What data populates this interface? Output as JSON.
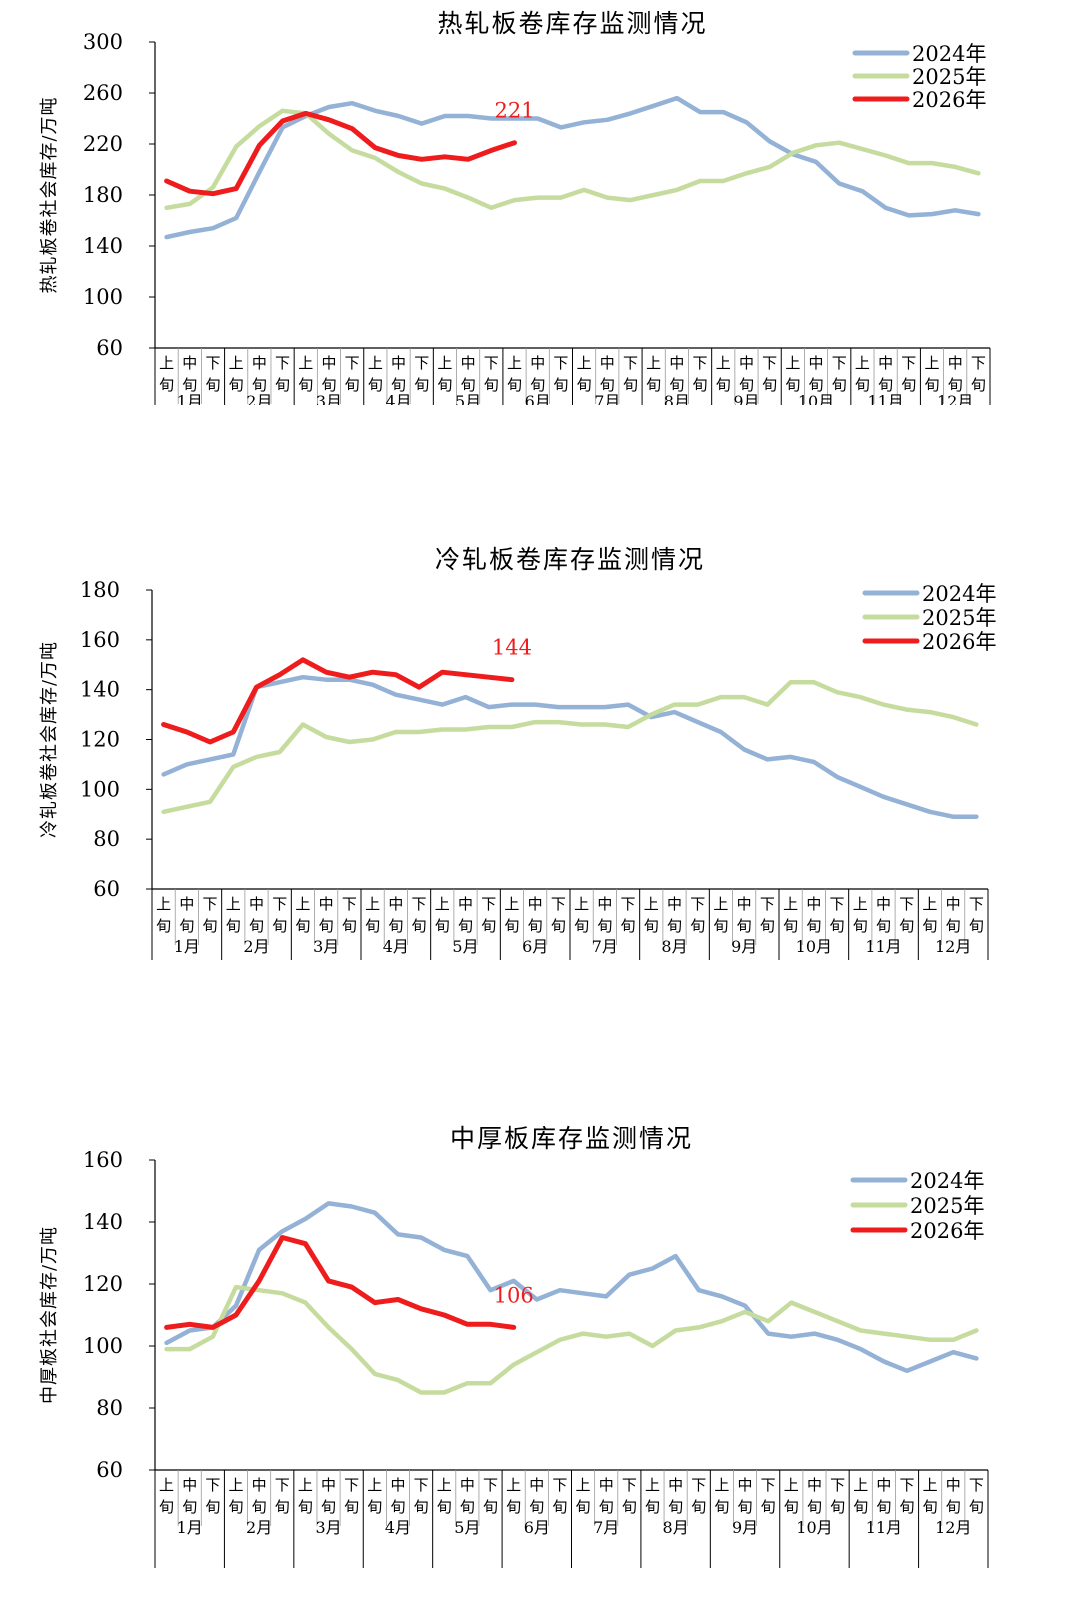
{
  "x_axis": {
    "dekads": [
      "上旬",
      "中旬",
      "下旬"
    ],
    "months": [
      "1月",
      "2月",
      "3月",
      "4月",
      "5月",
      "6月",
      "7月",
      "8月",
      "9月",
      "10月",
      "11月",
      "12月"
    ]
  },
  "colors": {
    "2024": "#94b1d6",
    "2025": "#c5dc9e",
    "2026": "#ee1c1c"
  },
  "chart_data": [
    {
      "type": "line",
      "title": "热轧板卷库存监测情况",
      "ylabel": "热轧板卷社会库存/万吨",
      "ylim": [
        60,
        300
      ],
      "yticks": [
        60,
        100,
        140,
        180,
        220,
        260,
        300
      ],
      "legend": "top-right",
      "annotation": {
        "text": "221",
        "series": "2026年",
        "index": 15
      },
      "series": [
        {
          "name": "2024年",
          "values": [
            147,
            151,
            154,
            162,
            198,
            233,
            242,
            249,
            252,
            246,
            242,
            236,
            242,
            242,
            240,
            240,
            240,
            233,
            237,
            239,
            244,
            250,
            256,
            245,
            245,
            237,
            222,
            212,
            206,
            189,
            183,
            170,
            164,
            165,
            168,
            165
          ]
        },
        {
          "name": "2025年",
          "values": [
            170,
            173,
            186,
            218,
            234,
            246,
            244,
            228,
            215,
            209,
            198,
            189,
            185,
            178,
            170,
            176,
            178,
            178,
            184,
            178,
            176,
            180,
            184,
            191,
            191,
            197,
            202,
            213,
            219,
            221,
            216,
            211,
            205,
            205,
            202,
            197
          ]
        },
        {
          "name": "2026年",
          "values": [
            191,
            183,
            181,
            185,
            219,
            238,
            244,
            239,
            232,
            217,
            211,
            208,
            210,
            208,
            215,
            221
          ]
        }
      ]
    },
    {
      "type": "line",
      "title": "冷轧板卷库存监测情况",
      "ylabel": "冷轧板卷社会库存/万吨",
      "ylim": [
        60,
        180
      ],
      "yticks": [
        60,
        80,
        100,
        120,
        140,
        160,
        180
      ],
      "legend": "top-right",
      "annotation": {
        "text": "144",
        "series": "2026年",
        "index": 15
      },
      "series": [
        {
          "name": "2024年",
          "values": [
            106,
            110,
            112,
            114,
            141,
            143,
            145,
            144,
            144,
            142,
            138,
            136,
            134,
            137,
            133,
            134,
            134,
            133,
            133,
            133,
            134,
            129,
            131,
            127,
            123,
            116,
            112,
            113,
            111,
            105,
            101,
            97,
            94,
            91,
            89,
            89
          ]
        },
        {
          "name": "2025年",
          "values": [
            91,
            93,
            95,
            109,
            113,
            115,
            126,
            121,
            119,
            120,
            123,
            123,
            124,
            124,
            125,
            125,
            127,
            127,
            126,
            126,
            125,
            130,
            134,
            134,
            137,
            137,
            134,
            143,
            143,
            139,
            137,
            134,
            132,
            131,
            129,
            126
          ]
        },
        {
          "name": "2026年",
          "values": [
            126,
            123,
            119,
            123,
            141,
            146,
            152,
            147,
            145,
            147,
            146,
            141,
            147,
            146,
            145,
            144
          ]
        }
      ]
    },
    {
      "type": "line",
      "title": "中厚板库存监测情况",
      "ylabel": "中厚板社会库存/万吨",
      "ylim": [
        60,
        160
      ],
      "yticks": [
        60,
        80,
        100,
        120,
        140,
        160
      ],
      "legend": "top-right",
      "annotation": {
        "text": "106",
        "series": "2026年",
        "index": 15
      },
      "series": [
        {
          "name": "2024年",
          "values": [
            101,
            105,
            106,
            113,
            131,
            137,
            141,
            146,
            145,
            143,
            136,
            135,
            131,
            129,
            118,
            121,
            115,
            118,
            117,
            116,
            123,
            125,
            129,
            118,
            116,
            113,
            104,
            103,
            104,
            102,
            99,
            95,
            92,
            95,
            98,
            96
          ]
        },
        {
          "name": "2025年",
          "values": [
            99,
            99,
            103,
            119,
            118,
            117,
            114,
            106,
            99,
            91,
            89,
            85,
            85,
            88,
            88,
            94,
            98,
            102,
            104,
            103,
            104,
            100,
            105,
            106,
            108,
            111,
            108,
            114,
            111,
            108,
            105,
            104,
            103,
            102,
            102,
            105
          ]
        },
        {
          "name": "2026年",
          "values": [
            106,
            107,
            106,
            110,
            121,
            135,
            133,
            121,
            119,
            114,
            115,
            112,
            110,
            107,
            107,
            106
          ]
        }
      ]
    }
  ]
}
